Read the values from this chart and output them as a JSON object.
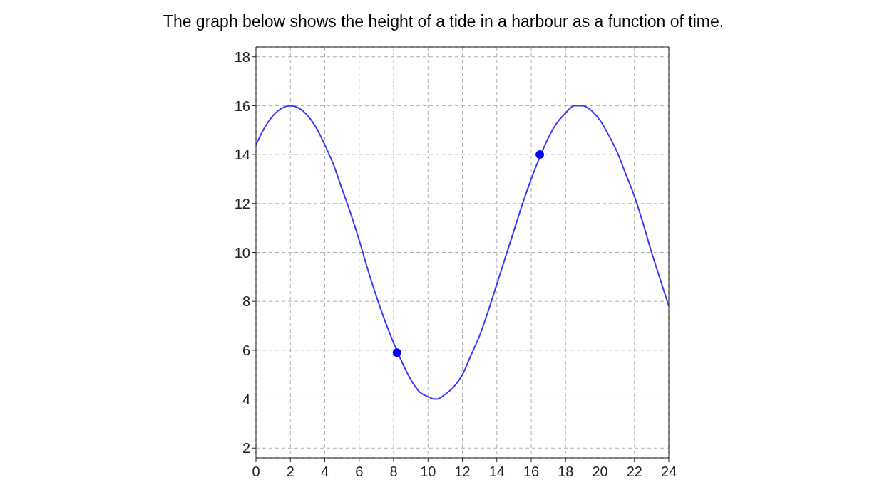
{
  "chart_data": {
    "type": "line",
    "title": "The graph below shows the height of a tide in a harbour as a function of time.",
    "series": [
      {
        "color": "#3a3aff",
        "marker": "none",
        "line_style": "solid",
        "x": [
          0,
          0.5,
          1,
          1.5,
          2,
          2.5,
          3,
          3.5,
          4,
          4.5,
          5,
          5.5,
          6,
          6.5,
          7,
          7.5,
          8,
          8.5,
          9,
          9.5,
          10,
          10.4,
          10.5,
          11,
          11.5,
          12,
          12.5,
          13,
          13.5,
          14,
          14.5,
          15,
          15.5,
          16,
          16.5,
          17,
          17.5,
          18,
          18.5,
          18.8,
          19,
          19.5,
          20,
          20.5,
          21,
          21.5,
          22,
          22.5,
          23,
          23.5,
          24
        ],
        "values": [
          14.4,
          15.1,
          15.6,
          15.9,
          16.0,
          15.9,
          15.6,
          15.1,
          14.4,
          13.6,
          12.6,
          11.6,
          10.5,
          9.3,
          8.2,
          7.2,
          6.3,
          5.5,
          4.8,
          4.3,
          4.1,
          4.0,
          4.0,
          4.2,
          4.5,
          5.0,
          5.8,
          6.6,
          7.6,
          8.7,
          9.8,
          10.9,
          12.0,
          13.0,
          13.9,
          14.7,
          15.3,
          15.7,
          16.0,
          16.0,
          16.0,
          15.8,
          15.4,
          14.8,
          14.1,
          13.2,
          12.3,
          11.2,
          10.0,
          8.9,
          7.8
        ]
      },
      {
        "type": "scatter",
        "color": "#0000ff",
        "marker": "circle",
        "x": [
          8.2,
          16.5
        ],
        "values": [
          5.9,
          14.0
        ]
      }
    ],
    "xlim": [
      0,
      24
    ],
    "xticks": [
      0,
      2,
      4,
      6,
      8,
      10,
      12,
      14,
      16,
      18,
      20,
      22,
      24
    ],
    "ylim": [
      1.6,
      18.4
    ],
    "yticks": [
      2,
      4,
      6,
      8,
      10,
      12,
      14,
      16,
      18
    ],
    "grid": true
  }
}
